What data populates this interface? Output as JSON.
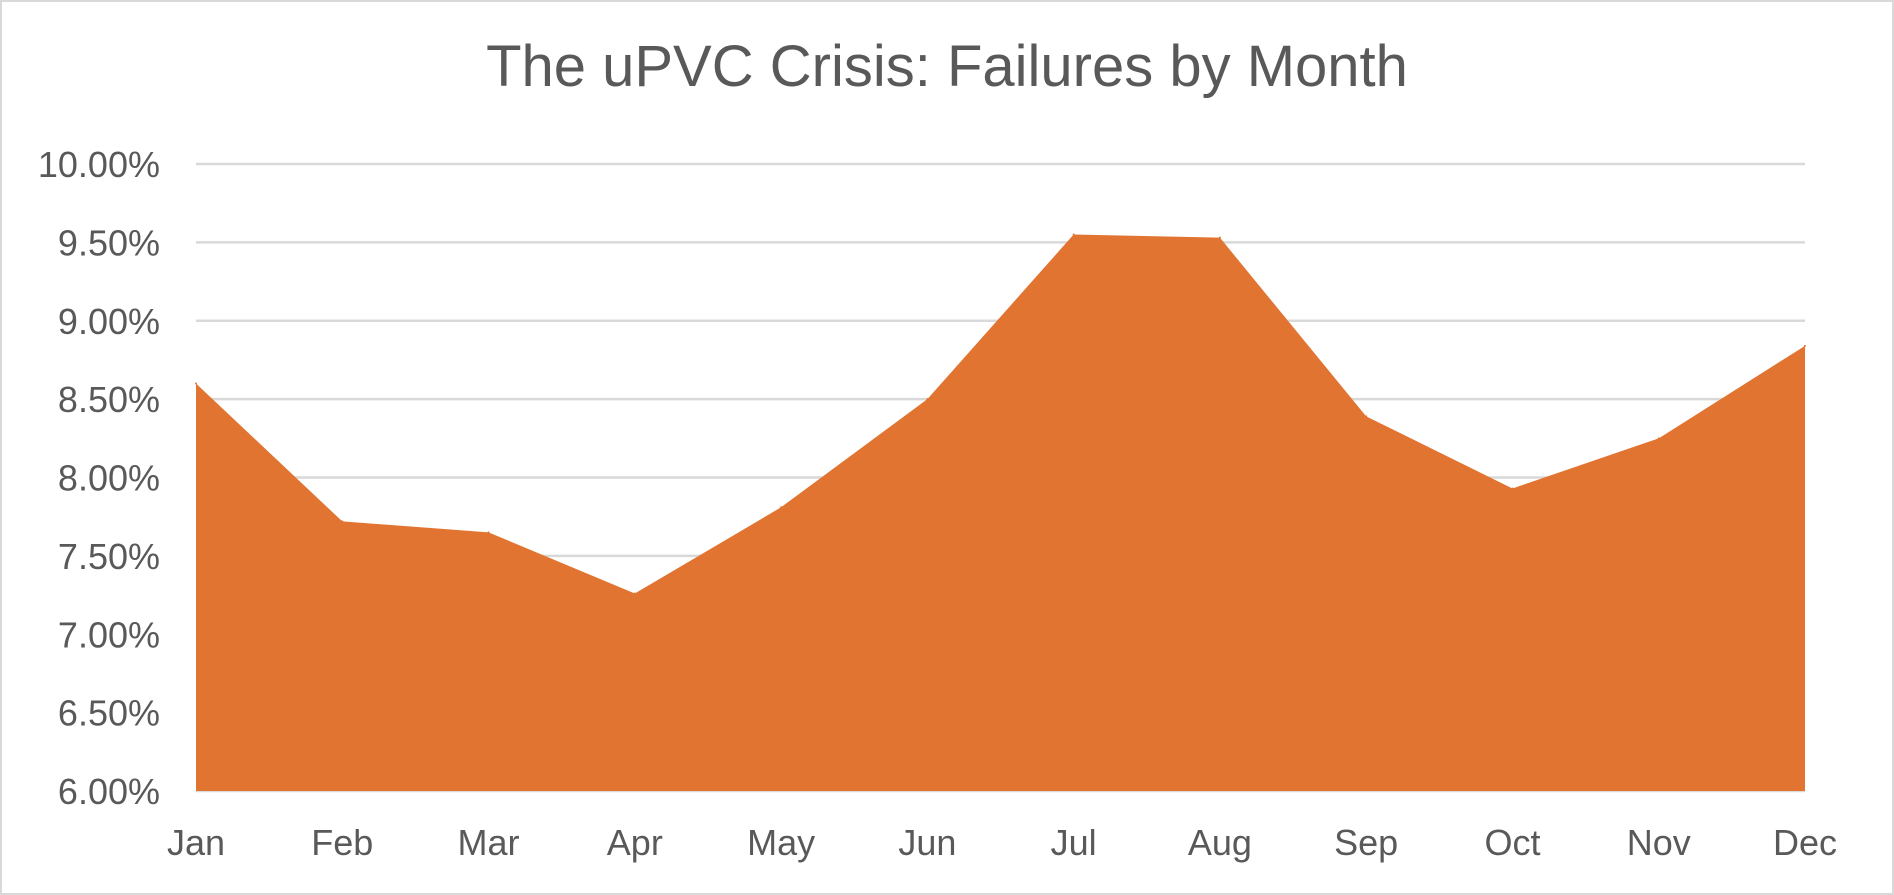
{
  "chart_data": {
    "type": "area",
    "title": "The uPVC Crisis: Failures by Month",
    "xlabel": "",
    "ylabel": "",
    "categories": [
      "Jan",
      "Feb",
      "Mar",
      "Apr",
      "May",
      "Jun",
      "Jul",
      "Aug",
      "Sep",
      "Oct",
      "Nov",
      "Dec"
    ],
    "series": [
      {
        "values": [
          8.6,
          7.72,
          7.65,
          7.26,
          7.81,
          8.5,
          9.55,
          9.53,
          8.39,
          7.93,
          8.25,
          8.84
        ]
      }
    ],
    "ylim": [
      6.0,
      10.0
    ],
    "yticks": [
      "6.00%",
      "6.50%",
      "7.00%",
      "7.50%",
      "8.00%",
      "8.50%",
      "9.00%",
      "9.50%",
      "10.00%"
    ],
    "grid": true,
    "legend": "none",
    "colors": {
      "fill": "#e07430",
      "grid": "#d9d9d9",
      "text": "#595959"
    }
  }
}
